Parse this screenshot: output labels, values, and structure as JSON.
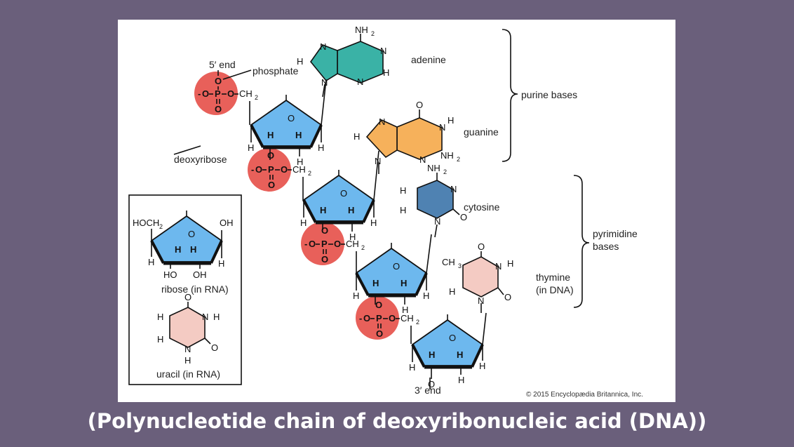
{
  "caption": "(Polynucleotide chain of deoxyribonucleic acid (DNA))",
  "copyright": "© 2015 Encyclopædia Britannica, Inc.",
  "labels": {
    "five_end": "5′ end",
    "three_end": "3′ end",
    "phosphate": "phosphate",
    "deoxyribose": "deoxyribose",
    "adenine": "adenine",
    "guanine": "guanine",
    "cytosine": "cytosine",
    "thymine_line1": "thymine",
    "thymine_line2": "(in DNA)",
    "purine_bases": "purine bases",
    "pyrimidine_line1": "pyrimidine",
    "pyrimidine_line2": "bases"
  },
  "inset": {
    "ribose_label": "ribose (in RNA)",
    "uracil_label": "uracil (in RNA)",
    "hoch2": "HOCH",
    "oh": "OH",
    "ho": "HO"
  },
  "atoms": {
    "O": "O",
    "P": "P",
    "H": "H",
    "N": "N",
    "C": "C",
    "nh2": "NH",
    "ch2": "CH",
    "ch3": "CH",
    "sub2": "2",
    "sub3": "3",
    "minus": "-"
  },
  "colors": {
    "background": "#6a5f7b",
    "phosphate": "#e8605a",
    "sugar": "#6db8ee",
    "adenine": "#3ab2a6",
    "guanine": "#f6b15b",
    "cytosine": "#4f82b2",
    "thymine": "#f4cbc3",
    "uracil": "#f4cbc3"
  }
}
